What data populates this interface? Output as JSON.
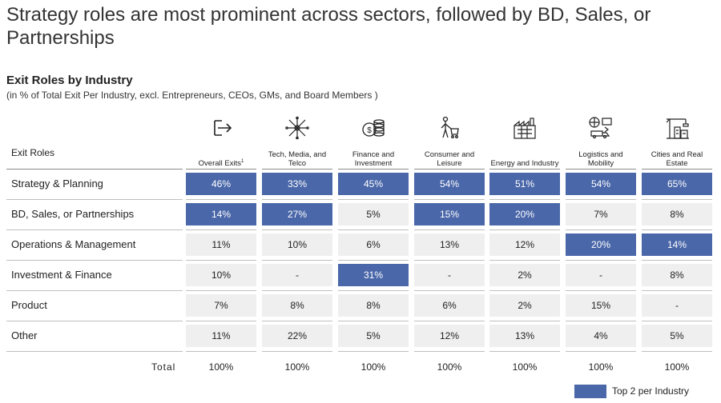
{
  "headline": "Strategy roles are most prominent across sectors, followed by BD, Sales, or Partnerships",
  "subtitle": "Exit Roles by Industry",
  "note": "(in % of Total Exit Per Industry, excl. Entrepreneurs, CEOs, GMs, and Board Members )",
  "row_header": "Exit Roles",
  "total_label": "Total",
  "legend_label": "Top 2 per Industry",
  "colors": {
    "highlight": "#4a67a9",
    "cell": "#efefef"
  },
  "chart_data": {
    "type": "table",
    "title": "Exit Roles by Industry",
    "columns": [
      {
        "label": "Overall Exits",
        "footnote": "1",
        "icon": "exit-icon"
      },
      {
        "label": "Tech, Media, and Telco",
        "icon": "network-icon"
      },
      {
        "label": "Finance and Investment",
        "icon": "coins-icon"
      },
      {
        "label": "Consumer and Leisure",
        "icon": "shopper-icon"
      },
      {
        "label": "Energy and Industry",
        "icon": "factory-icon"
      },
      {
        "label": "Logistics and Mobility",
        "icon": "logistics-icon"
      },
      {
        "label": "Cities and Real Estate",
        "icon": "crane-icon"
      }
    ],
    "rows": [
      {
        "label": "Strategy & Planning",
        "values": [
          "46%",
          "33%",
          "45%",
          "54%",
          "51%",
          "54%",
          "65%"
        ],
        "highlight": [
          true,
          true,
          true,
          true,
          true,
          true,
          true
        ]
      },
      {
        "label": "BD, Sales, or Partnerships",
        "values": [
          "14%",
          "27%",
          "5%",
          "15%",
          "20%",
          "7%",
          "8%"
        ],
        "highlight": [
          true,
          true,
          false,
          true,
          true,
          false,
          false
        ]
      },
      {
        "label": "Operations & Management",
        "values": [
          "11%",
          "10%",
          "6%",
          "13%",
          "12%",
          "20%",
          "14%"
        ],
        "highlight": [
          false,
          false,
          false,
          false,
          false,
          true,
          true
        ]
      },
      {
        "label": "Investment & Finance",
        "values": [
          "10%",
          "-",
          "31%",
          "-",
          "2%",
          "-",
          "8%"
        ],
        "highlight": [
          false,
          false,
          true,
          false,
          false,
          false,
          false
        ]
      },
      {
        "label": "Product",
        "values": [
          "7%",
          "8%",
          "8%",
          "6%",
          "2%",
          "15%",
          "-"
        ],
        "highlight": [
          false,
          false,
          false,
          false,
          false,
          false,
          false
        ]
      },
      {
        "label": "Other",
        "values": [
          "11%",
          "22%",
          "5%",
          "12%",
          "13%",
          "4%",
          "5%"
        ],
        "highlight": [
          false,
          false,
          false,
          false,
          false,
          false,
          false
        ]
      }
    ],
    "totals": [
      "100%",
      "100%",
      "100%",
      "100%",
      "100%",
      "100%",
      "100%"
    ]
  }
}
